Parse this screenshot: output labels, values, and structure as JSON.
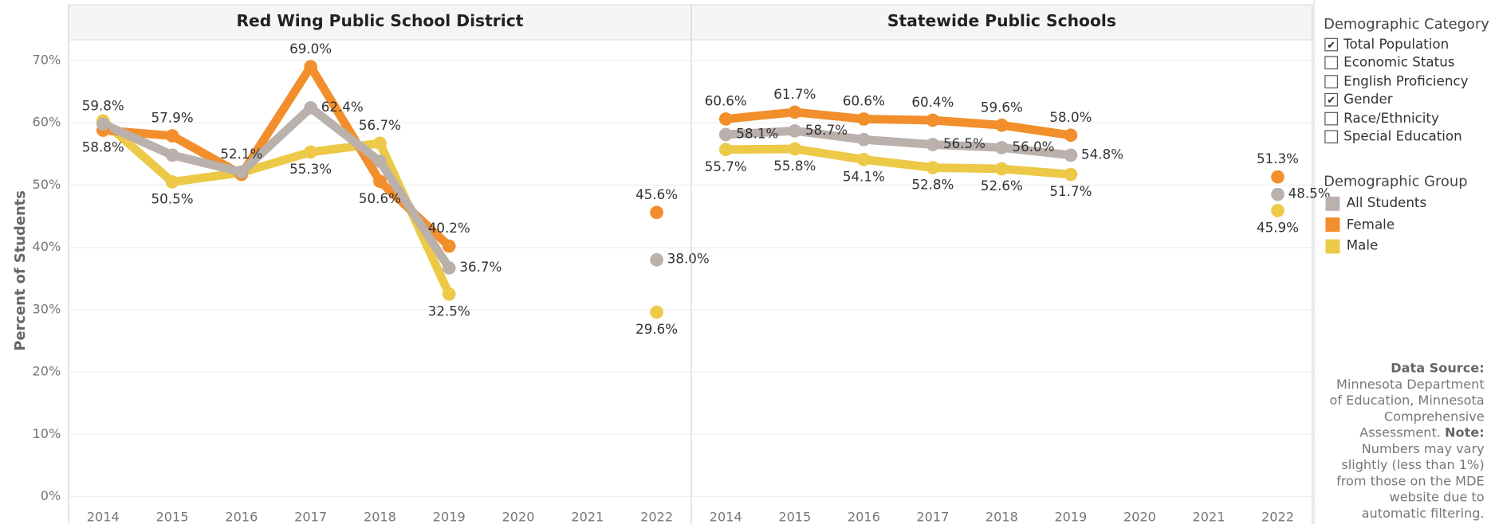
{
  "chart_data": [
    {
      "type": "line",
      "title": "Red Wing Public School District",
      "y_label": "Percent of Students",
      "categories": [
        "2014",
        "2015",
        "2016",
        "2017",
        "2018",
        "2019",
        "2020",
        "2021",
        "2022"
      ],
      "ylim": [
        -1.4,
        73.3
      ],
      "yticks": [
        {
          "value": 0,
          "label": "0%"
        },
        {
          "value": 10,
          "label": "10%"
        },
        {
          "value": 20,
          "label": "20%"
        },
        {
          "value": 30,
          "label": "30%"
        },
        {
          "value": 40,
          "label": "40%"
        },
        {
          "value": 50,
          "label": "50%"
        },
        {
          "value": 60,
          "label": "60%"
        },
        {
          "value": 70,
          "label": "70%"
        }
      ],
      "grid": true,
      "legend_title": "Demographic Group",
      "series": [
        {
          "name": "All Students",
          "color": "#bab0ac",
          "values": [
            59.8,
            54.8,
            52.1,
            62.4,
            53.8,
            36.7,
            null,
            null,
            38.0
          ],
          "value_labels": [
            "59.8%",
            null,
            "52.1%",
            "62.4%",
            null,
            "36.7%",
            null,
            null,
            "38.0%"
          ]
        },
        {
          "name": "Female",
          "color": "#f28e2b",
          "values": [
            58.8,
            57.9,
            51.7,
            69.0,
            50.6,
            40.2,
            null,
            null,
            45.6
          ],
          "value_labels": [
            "58.8%",
            "57.9%",
            null,
            "69.0%",
            "50.6%",
            "40.2%",
            null,
            null,
            "45.6%"
          ]
        },
        {
          "name": "Male",
          "color": "#edc948",
          "values": [
            60.3,
            50.5,
            52.0,
            55.3,
            56.7,
            32.5,
            null,
            null,
            29.6
          ],
          "value_labels": [
            null,
            "50.5%",
            null,
            "55.3%",
            "56.7%",
            "32.5%",
            null,
            null,
            "29.6%"
          ]
        }
      ]
    },
    {
      "type": "line",
      "title": "Statewide Public Schools",
      "categories": [
        "2014",
        "2015",
        "2016",
        "2017",
        "2018",
        "2019",
        "2020",
        "2021",
        "2022"
      ],
      "ylim": [
        -1.4,
        73.3
      ],
      "yticks": [
        {
          "value": 0,
          "label": "0%"
        },
        {
          "value": 10,
          "label": "10%"
        },
        {
          "value": 20,
          "label": "20%"
        },
        {
          "value": 30,
          "label": "30%"
        },
        {
          "value": 40,
          "label": "40%"
        },
        {
          "value": 50,
          "label": "50%"
        },
        {
          "value": 60,
          "label": "60%"
        },
        {
          "value": 70,
          "label": "70%"
        }
      ],
      "grid": true,
      "series": [
        {
          "name": "All Students",
          "color": "#bab0ac",
          "values": [
            58.1,
            58.7,
            57.3,
            56.5,
            56.0,
            54.8,
            null,
            null,
            48.5
          ],
          "value_labels": [
            "58.1%",
            "58.7%",
            null,
            "56.5%",
            "56.0%",
            "54.8%",
            null,
            null,
            "48.5%"
          ]
        },
        {
          "name": "Female",
          "color": "#f28e2b",
          "values": [
            60.6,
            61.7,
            60.6,
            60.4,
            59.6,
            58.0,
            null,
            null,
            51.3
          ],
          "value_labels": [
            "60.6%",
            "61.7%",
            "60.6%",
            "60.4%",
            "59.6%",
            "58.0%",
            null,
            null,
            "51.3%"
          ]
        },
        {
          "name": "Male",
          "color": "#edc948",
          "values": [
            55.7,
            55.8,
            54.1,
            52.8,
            52.6,
            51.7,
            null,
            null,
            45.9
          ],
          "value_labels": [
            "55.7%",
            "55.8%",
            "54.1%",
            "52.8%",
            "52.6%",
            "51.7%",
            null,
            null,
            "45.9%"
          ]
        }
      ]
    }
  ],
  "filter": {
    "title": "Demographic Category",
    "options": [
      {
        "label": "Total Population",
        "checked": true
      },
      {
        "label": "Economic Status",
        "checked": false
      },
      {
        "label": "English Proficiency",
        "checked": false
      },
      {
        "label": "Gender",
        "checked": true
      },
      {
        "label": "Race/Ethnicity",
        "checked": false
      },
      {
        "label": "Special Education",
        "checked": false
      }
    ]
  },
  "note": {
    "source_heading": "Data Source:",
    "source": "Minnesota Department of Education, Minnesota Comprehensive Assessment.",
    "note_heading": "Note:",
    "note": "Numbers may vary slightly (less than 1%) from those on the MDE website due to automatic filtering."
  }
}
